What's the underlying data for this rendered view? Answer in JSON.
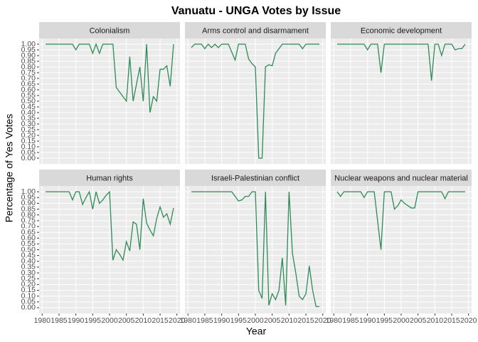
{
  "title": "Vanuatu - UNGA Votes by Issue",
  "x_label": "Year",
  "y_label": "Percentage of Yes Votes",
  "chart_data": [
    {
      "type": "line",
      "title": "Colonialism",
      "color": "#2E8B57",
      "xlim": [
        1979.1,
        2020.9
      ],
      "ylim": [
        -0.05,
        1.05
      ],
      "yticks": [
        {
          "value": 0,
          "label": "0.00"
        },
        {
          "value": 0.05,
          "label": "0.05"
        },
        {
          "value": 0.1,
          "label": "0.10"
        },
        {
          "value": 0.15,
          "label": "0.15"
        },
        {
          "value": 0.2,
          "label": "0.20"
        },
        {
          "value": 0.25,
          "label": "0.25"
        },
        {
          "value": 0.3,
          "label": "0.30"
        },
        {
          "value": 0.35,
          "label": "0.35"
        },
        {
          "value": 0.4,
          "label": "0.40"
        },
        {
          "value": 0.45,
          "label": "0.45"
        },
        {
          "value": 0.5,
          "label": "0.50"
        },
        {
          "value": 0.55,
          "label": "0.55"
        },
        {
          "value": 0.6,
          "label": "0.60"
        },
        {
          "value": 0.65,
          "label": "0.65"
        },
        {
          "value": 0.7,
          "label": "0.70"
        },
        {
          "value": 0.75,
          "label": "0.75"
        },
        {
          "value": 0.8,
          "label": "0.80"
        },
        {
          "value": 0.85,
          "label": "0.85"
        },
        {
          "value": 0.9,
          "label": "0.90"
        },
        {
          "value": 0.95,
          "label": "0.95"
        },
        {
          "value": 1,
          "label": "1.00"
        }
      ],
      "x": [
        1981,
        1982,
        1983,
        1984,
        1985,
        1986,
        1987,
        1988,
        1989,
        1990,
        1991,
        1992,
        1993,
        1994,
        1995,
        1996,
        1997,
        1998,
        1999,
        2000,
        2001,
        2002,
        2003,
        2004,
        2005,
        2006,
        2007,
        2008,
        2009,
        2010,
        2011,
        2012,
        2013,
        2014,
        2015,
        2016,
        2017,
        2018,
        2019
      ],
      "values": [
        1,
        1,
        1,
        1,
        1,
        1,
        1,
        1,
        1,
        0.95,
        1,
        1,
        1,
        1,
        0.92,
        1,
        0.92,
        1,
        1,
        1,
        1,
        0.62,
        0.58,
        0.54,
        0.5,
        0.89,
        0.5,
        0.65,
        0.8,
        0.5,
        1,
        0.4,
        0.54,
        0.5,
        0.78,
        0.78,
        0.81,
        0.63,
        1
      ]
    },
    {
      "type": "line",
      "title": "Arms control and disarmament",
      "color": "#2E8B57",
      "xlim": [
        1979.1,
        2020.9
      ],
      "ylim": [
        -0.05,
        1.05
      ],
      "x": [
        1981,
        1982,
        1983,
        1984,
        1985,
        1986,
        1987,
        1988,
        1989,
        1990,
        1991,
        1992,
        1993,
        1994,
        1995,
        1996,
        1997,
        1998,
        1999,
        2000,
        2001,
        2002,
        2003,
        2004,
        2005,
        2006,
        2007,
        2008,
        2009,
        2010,
        2011,
        2012,
        2013,
        2014,
        2015,
        2016,
        2017,
        2018,
        2019
      ],
      "values": [
        0.97,
        1,
        1,
        1,
        0.96,
        1,
        0.97,
        1,
        0.97,
        1,
        1,
        1,
        0.93,
        0.86,
        1,
        1,
        1,
        0.87,
        0.83,
        0.8,
        0,
        0,
        0.8,
        0.82,
        0.81,
        0.92,
        0.96,
        1,
        1,
        1,
        1,
        1,
        1,
        0.96,
        1,
        1,
        1,
        1,
        1
      ]
    },
    {
      "type": "line",
      "title": "Economic development",
      "color": "#2E8B57",
      "xlim": [
        1979.1,
        2020.9
      ],
      "ylim": [
        -0.05,
        1.05
      ],
      "x": [
        1981,
        1982,
        1983,
        1984,
        1985,
        1986,
        1987,
        1988,
        1989,
        1990,
        1991,
        1992,
        1993,
        1994,
        1995,
        1996,
        1997,
        1998,
        1999,
        2000,
        2001,
        2002,
        2003,
        2004,
        2005,
        2006,
        2007,
        2008,
        2009,
        2010,
        2011,
        2012,
        2013,
        2014,
        2015,
        2016,
        2017,
        2018,
        2019
      ],
      "values": [
        1,
        1,
        1,
        1,
        1,
        1,
        1,
        1,
        1,
        0.95,
        1,
        1,
        1,
        0.75,
        1,
        1,
        1,
        1,
        1,
        1,
        1,
        1,
        1,
        1,
        1,
        1,
        1,
        1,
        0.68,
        1,
        1,
        0.9,
        1,
        1,
        1,
        0.95,
        0.96,
        0.96,
        1
      ]
    },
    {
      "type": "line",
      "title": "Human rights",
      "color": "#2E8B57",
      "xlim": [
        1979.1,
        2020.9
      ],
      "ylim": [
        -0.05,
        1.05
      ],
      "yticks": [
        {
          "value": 0,
          "label": "0.00"
        },
        {
          "value": 0.05,
          "label": "0.05"
        },
        {
          "value": 0.1,
          "label": "0.10"
        },
        {
          "value": 0.15,
          "label": "0.15"
        },
        {
          "value": 0.2,
          "label": "0.20"
        },
        {
          "value": 0.25,
          "label": "0.25"
        },
        {
          "value": 0.3,
          "label": "0.30"
        },
        {
          "value": 0.35,
          "label": "0.35"
        },
        {
          "value": 0.4,
          "label": "0.40"
        },
        {
          "value": 0.45,
          "label": "0.45"
        },
        {
          "value": 0.5,
          "label": "0.50"
        },
        {
          "value": 0.55,
          "label": "0.55"
        },
        {
          "value": 0.6,
          "label": "0.60"
        },
        {
          "value": 0.65,
          "label": "0.65"
        },
        {
          "value": 0.7,
          "label": "0.70"
        },
        {
          "value": 0.75,
          "label": "0.75"
        },
        {
          "value": 0.8,
          "label": "0.80"
        },
        {
          "value": 0.85,
          "label": "0.85"
        },
        {
          "value": 0.9,
          "label": "0.90"
        },
        {
          "value": 0.95,
          "label": "0.95"
        },
        {
          "value": 1,
          "label": "1.00"
        }
      ],
      "xticks": [
        1980,
        1985,
        1990,
        1995,
        2000,
        2005,
        2010,
        2015,
        2020
      ],
      "x": [
        1981,
        1982,
        1983,
        1984,
        1985,
        1986,
        1987,
        1988,
        1989,
        1990,
        1991,
        1992,
        1993,
        1994,
        1995,
        1996,
        1997,
        1998,
        1999,
        2000,
        2001,
        2002,
        2003,
        2004,
        2005,
        2006,
        2007,
        2008,
        2009,
        2010,
        2011,
        2012,
        2013,
        2014,
        2015,
        2016,
        2017,
        2018,
        2019
      ],
      "values": [
        1,
        1,
        1,
        1,
        1,
        1,
        1,
        1,
        0.93,
        1,
        1,
        0.89,
        0.95,
        1,
        0.85,
        1,
        0.9,
        0.93,
        0.97,
        1,
        0.41,
        0.5,
        0.46,
        0.41,
        0.57,
        0.49,
        0.74,
        0.72,
        0.5,
        0.94,
        0.73,
        0.67,
        0.62,
        0.77,
        0.87,
        0.78,
        0.81,
        0.72,
        0.86
      ]
    },
    {
      "type": "line",
      "title": "Israeli-Palestinian conflict",
      "color": "#2E8B57",
      "xlim": [
        1979.1,
        2020.9
      ],
      "ylim": [
        -0.05,
        1.05
      ],
      "xticks": [
        1980,
        1985,
        1990,
        1995,
        2000,
        2005,
        2010,
        2015,
        2020
      ],
      "x": [
        1981,
        1982,
        1983,
        1984,
        1985,
        1986,
        1987,
        1988,
        1989,
        1990,
        1991,
        1992,
        1993,
        1994,
        1995,
        1996,
        1997,
        1998,
        1999,
        2000,
        2001,
        2002,
        2003,
        2004,
        2005,
        2006,
        2007,
        2008,
        2009,
        2010,
        2011,
        2012,
        2013,
        2014,
        2015,
        2016,
        2017,
        2018,
        2019
      ],
      "values": [
        1,
        1,
        1,
        1,
        1,
        1,
        1,
        1,
        1,
        1,
        1,
        1,
        1,
        0.96,
        0.92,
        0.93,
        0.96,
        0.96,
        1,
        1,
        0.15,
        0.08,
        1,
        0.02,
        0.12,
        0.07,
        0.15,
        0.43,
        0.02,
        1,
        0.47,
        0.3,
        0.1,
        0.07,
        0.12,
        0.36,
        0.15,
        0.01,
        0.01
      ]
    },
    {
      "type": "line",
      "title": "Nuclear weapons and nuclear material",
      "color": "#2E8B57",
      "xlim": [
        1979.1,
        2020.9
      ],
      "ylim": [
        -0.05,
        1.05
      ],
      "xticks": [
        1980,
        1985,
        1990,
        1995,
        2000,
        2005,
        2010,
        2015,
        2020
      ],
      "x": [
        1981,
        1982,
        1983,
        1984,
        1985,
        1986,
        1987,
        1988,
        1989,
        1990,
        1991,
        1992,
        1993,
        1994,
        1995,
        1996,
        1997,
        1998,
        1999,
        2000,
        2001,
        2002,
        2003,
        2004,
        2005,
        2006,
        2007,
        2008,
        2009,
        2010,
        2011,
        2012,
        2013,
        2014,
        2015,
        2016,
        2017,
        2018,
        2019
      ],
      "values": [
        1,
        0.96,
        1,
        1,
        1,
        1,
        1,
        1,
        0.95,
        1,
        1,
        1,
        0.75,
        0.5,
        1,
        1,
        1,
        0.85,
        0.88,
        0.93,
        0.9,
        0.88,
        0.86,
        0.86,
        1,
        1,
        1,
        1,
        1,
        1,
        1,
        1,
        0.94,
        1,
        1,
        1,
        1,
        1,
        1
      ]
    }
  ]
}
